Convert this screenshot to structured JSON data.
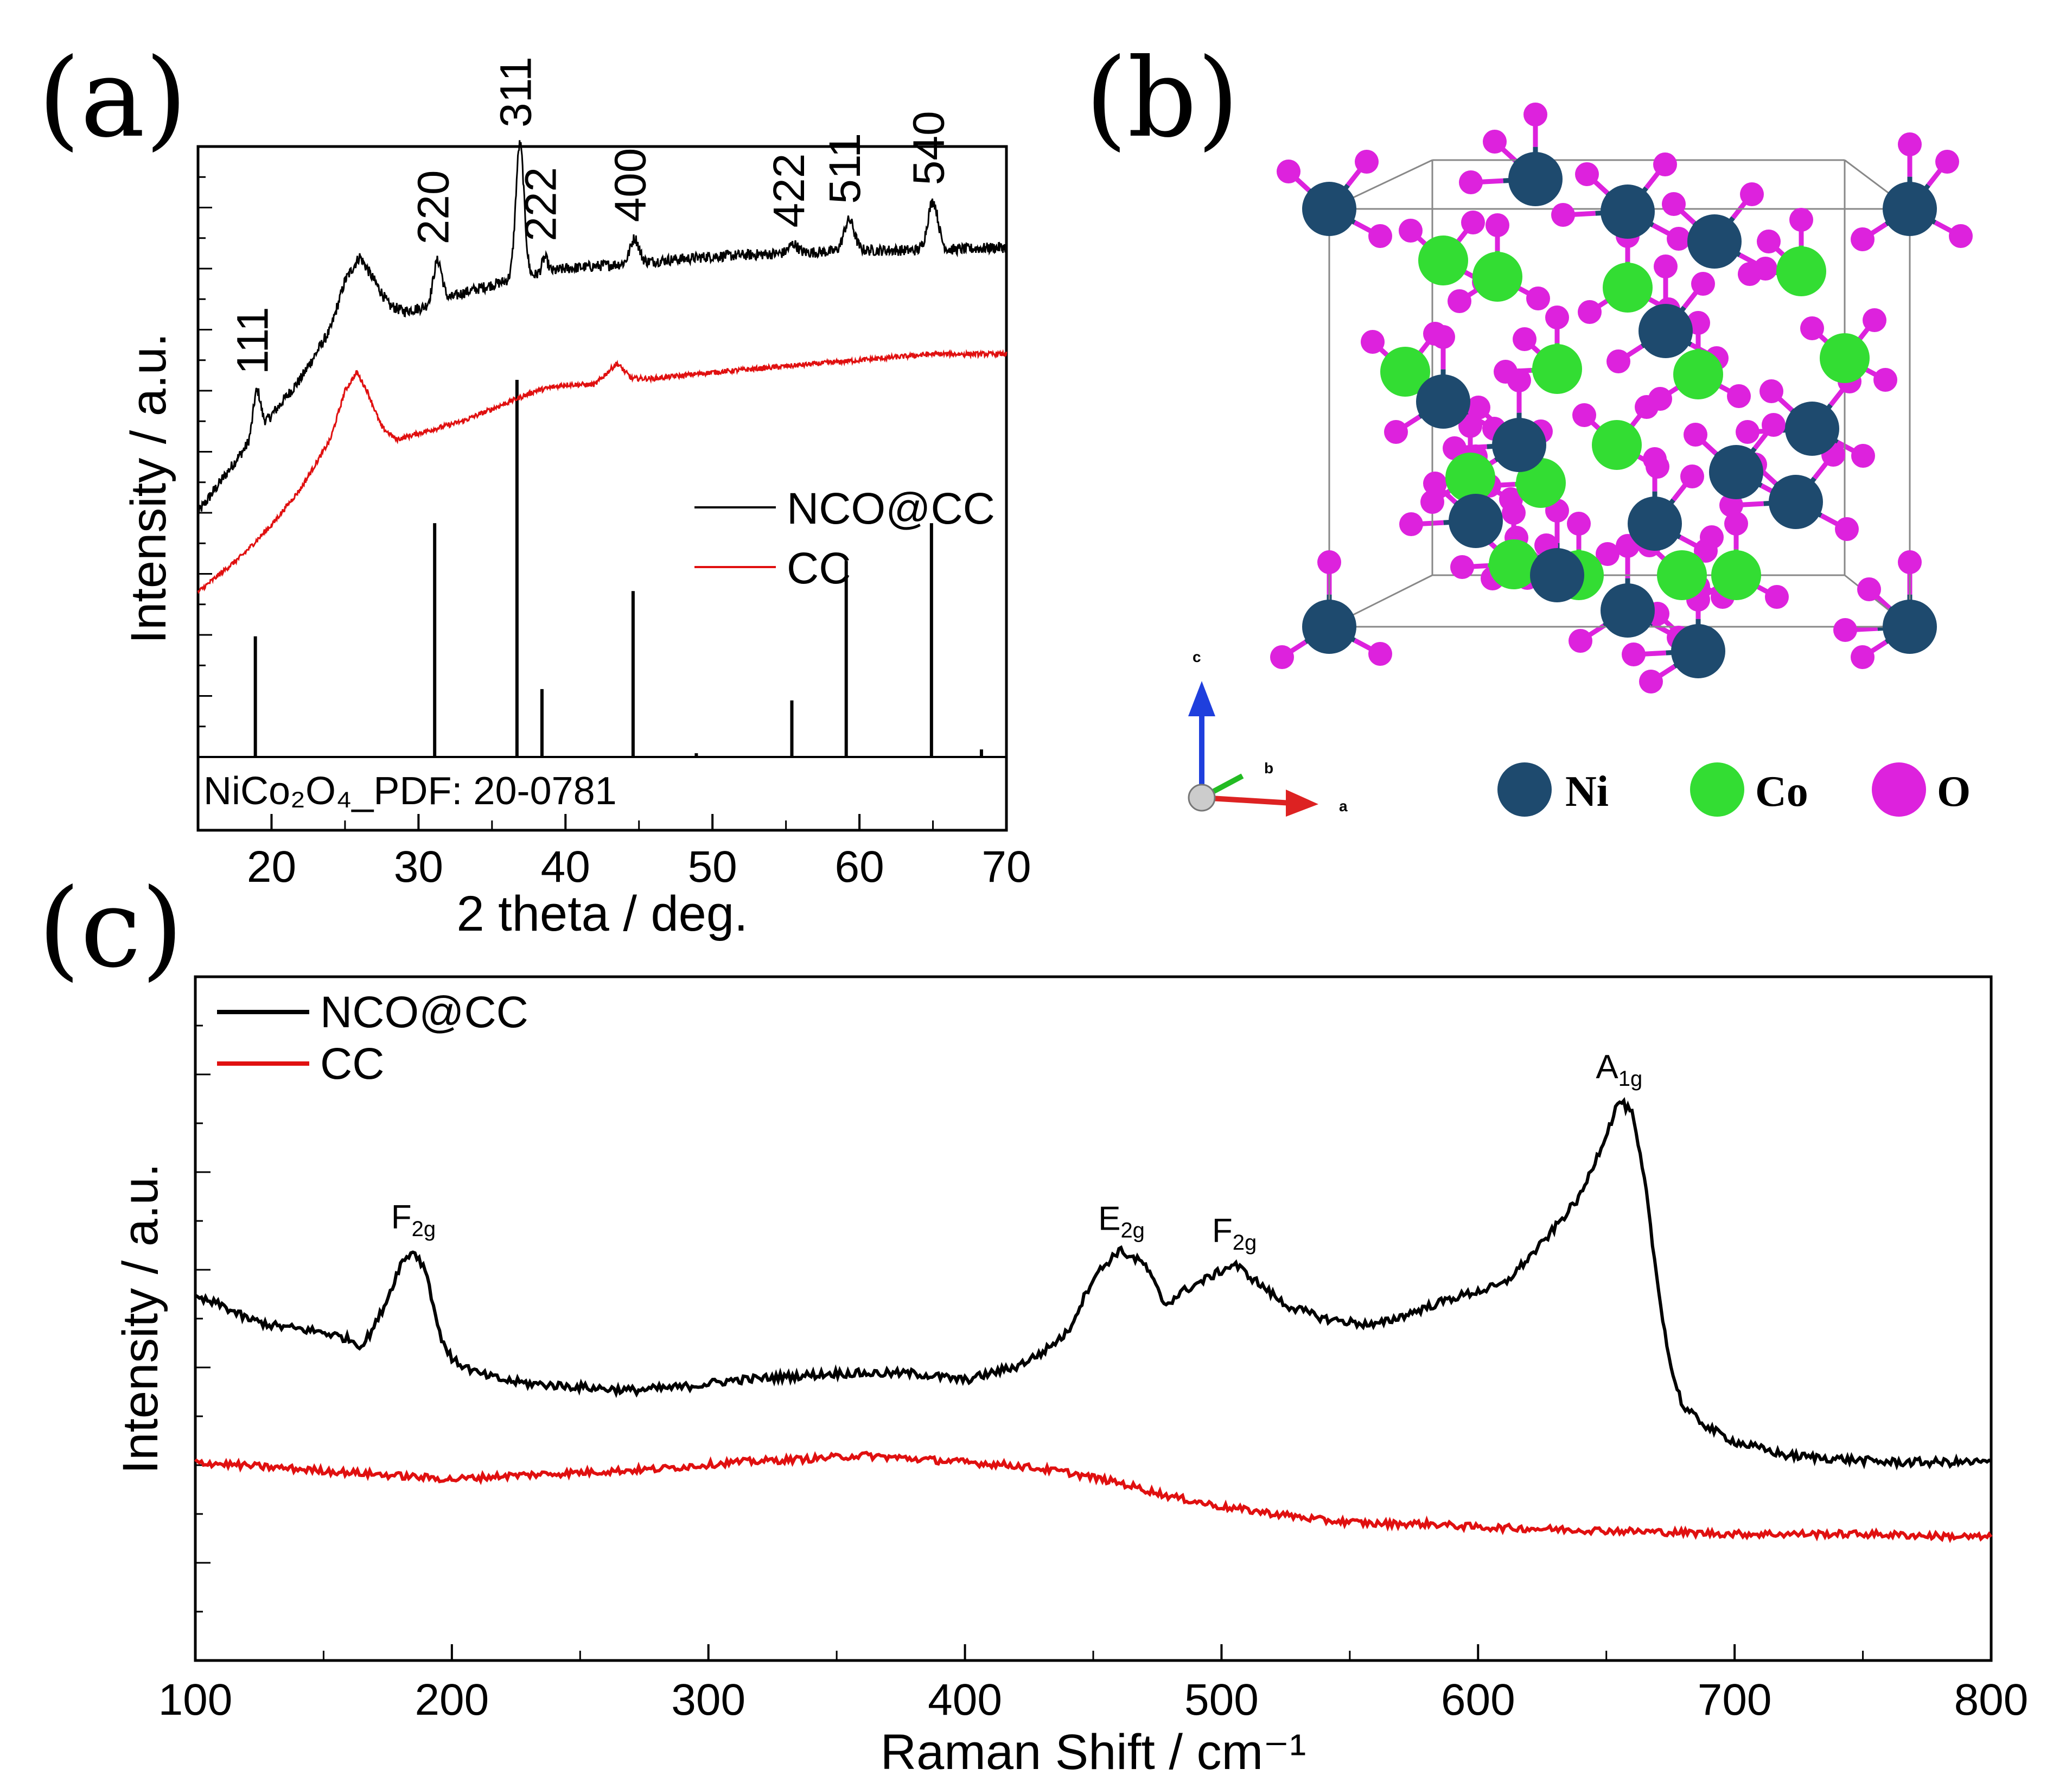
{
  "panels": {
    "a": "(a)",
    "b": "(b)",
    "c": "(c)"
  },
  "colors": {
    "nco": "#000000",
    "cc": "#e01010",
    "ni": "#1e4a6e",
    "co": "#33dd33",
    "o": "#dd22dd"
  },
  "chart_data": [
    {
      "id": "xrd",
      "type": "line",
      "title": "",
      "xlabel": "2 theta / deg.",
      "ylabel": "Intensity / a.u.",
      "xlim": [
        15,
        70
      ],
      "x_ticks": [
        20,
        30,
        40,
        50,
        60,
        70
      ],
      "legend": {
        "position": "right-middle",
        "entries": [
          "NCO@CC",
          "CC"
        ]
      },
      "series": [
        {
          "name": "NCO@CC",
          "color": "#000000",
          "baseline": [
            [
              15,
              0.4
            ],
            [
              18,
              0.5
            ],
            [
              20,
              0.56
            ],
            [
              22,
              0.62
            ],
            [
              24,
              0.7
            ],
            [
              25,
              0.78
            ],
            [
              26,
              0.82
            ],
            [
              27,
              0.78
            ],
            [
              28,
              0.74
            ],
            [
              29,
              0.73
            ],
            [
              31,
              0.74
            ],
            [
              33,
              0.76
            ],
            [
              36,
              0.78
            ],
            [
              38,
              0.79
            ],
            [
              40,
              0.8
            ],
            [
              45,
              0.81
            ],
            [
              50,
              0.82
            ],
            [
              55,
              0.825
            ],
            [
              60,
              0.83
            ],
            [
              65,
              0.83
            ],
            [
              70,
              0.835
            ]
          ],
          "peaks": [
            {
              "x": 19.0,
              "h": 0.07,
              "w": 0.25
            },
            {
              "x": 31.3,
              "h": 0.07,
              "w": 0.3
            },
            {
              "x": 36.9,
              "h": 0.22,
              "w": 0.28
            },
            {
              "x": 38.6,
              "h": 0.025,
              "w": 0.2
            },
            {
              "x": 44.7,
              "h": 0.04,
              "w": 0.3
            },
            {
              "x": 55.5,
              "h": 0.015,
              "w": 0.3
            },
            {
              "x": 59.3,
              "h": 0.05,
              "w": 0.35
            },
            {
              "x": 65.0,
              "h": 0.08,
              "w": 0.35
            }
          ]
        },
        {
          "name": "CC",
          "color": "#e01010",
          "baseline": [
            [
              15,
              0.27
            ],
            [
              18,
              0.33
            ],
            [
              20,
              0.38
            ],
            [
              22,
              0.44
            ],
            [
              24,
              0.52
            ],
            [
              25,
              0.6
            ],
            [
              25.8,
              0.63
            ],
            [
              26.5,
              0.6
            ],
            [
              27.5,
              0.54
            ],
            [
              28.5,
              0.52
            ],
            [
              30,
              0.53
            ],
            [
              33,
              0.55
            ],
            [
              36,
              0.58
            ],
            [
              38,
              0.6
            ],
            [
              40,
              0.61
            ],
            [
              42,
              0.61
            ],
            [
              43.5,
              0.645
            ],
            [
              44.5,
              0.62
            ],
            [
              46,
              0.62
            ],
            [
              50,
              0.63
            ],
            [
              55,
              0.64
            ],
            [
              60,
              0.65
            ],
            [
              65,
              0.66
            ],
            [
              70,
              0.66
            ]
          ],
          "peaks": []
        }
      ],
      "peak_labels": [
        {
          "x": 19.0,
          "label": "111"
        },
        {
          "x": 31.3,
          "label": "220"
        },
        {
          "x": 36.9,
          "label": "311"
        },
        {
          "x": 38.6,
          "label": "222"
        },
        {
          "x": 44.7,
          "label": "400"
        },
        {
          "x": 55.5,
          "label": "422"
        },
        {
          "x": 59.3,
          "label": "511"
        },
        {
          "x": 65.0,
          "label": "540"
        }
      ],
      "reference": {
        "label": "NiCo₂O₄_PDF: 20-0781",
        "lines": [
          [
            18.9,
            0.32
          ],
          [
            31.1,
            0.62
          ],
          [
            36.7,
            1.0
          ],
          [
            38.4,
            0.18
          ],
          [
            44.6,
            0.44
          ],
          [
            48.9,
            0.01
          ],
          [
            55.4,
            0.15
          ],
          [
            59.1,
            0.52
          ],
          [
            64.9,
            0.62
          ],
          [
            68.3,
            0.02
          ]
        ]
      }
    },
    {
      "id": "raman",
      "type": "line",
      "title": "",
      "xlabel": "Raman Shift / cm⁻¹",
      "ylabel": "Intensity / a.u.",
      "xlim": [
        100,
        800
      ],
      "x_ticks": [
        100,
        200,
        300,
        400,
        500,
        600,
        700,
        800
      ],
      "legend": {
        "position": "top-left",
        "entries": [
          "NCO@CC",
          "CC"
        ]
      },
      "series": [
        {
          "name": "NCO@CC",
          "color": "#000000",
          "points": [
            [
              100,
              0.53
            ],
            [
              110,
              0.52
            ],
            [
              120,
              0.5
            ],
            [
              130,
              0.49
            ],
            [
              140,
              0.485
            ],
            [
              150,
              0.48
            ],
            [
              160,
              0.47
            ],
            [
              165,
              0.46
            ],
            [
              170,
              0.49
            ],
            [
              175,
              0.53
            ],
            [
              180,
              0.58
            ],
            [
              185,
              0.6
            ],
            [
              190,
              0.57
            ],
            [
              195,
              0.48
            ],
            [
              200,
              0.44
            ],
            [
              210,
              0.42
            ],
            [
              220,
              0.41
            ],
            [
              230,
              0.405
            ],
            [
              250,
              0.4
            ],
            [
              270,
              0.395
            ],
            [
              290,
              0.4
            ],
            [
              310,
              0.41
            ],
            [
              330,
              0.415
            ],
            [
              350,
              0.42
            ],
            [
              380,
              0.42
            ],
            [
              400,
              0.41
            ],
            [
              410,
              0.42
            ],
            [
              420,
              0.43
            ],
            [
              430,
              0.45
            ],
            [
              440,
              0.48
            ],
            [
              450,
              0.56
            ],
            [
              460,
              0.6
            ],
            [
              470,
              0.58
            ],
            [
              478,
              0.52
            ],
            [
              485,
              0.54
            ],
            [
              495,
              0.56
            ],
            [
              505,
              0.58
            ],
            [
              515,
              0.55
            ],
            [
              525,
              0.52
            ],
            [
              540,
              0.5
            ],
            [
              560,
              0.49
            ],
            [
              575,
              0.51
            ],
            [
              590,
              0.53
            ],
            [
              600,
              0.54
            ],
            [
              610,
              0.55
            ],
            [
              625,
              0.61
            ],
            [
              640,
              0.68
            ],
            [
              650,
              0.77
            ],
            [
              655,
              0.82
            ],
            [
              660,
              0.8
            ],
            [
              665,
              0.7
            ],
            [
              670,
              0.55
            ],
            [
              675,
              0.43
            ],
            [
              680,
              0.37
            ],
            [
              690,
              0.34
            ],
            [
              700,
              0.32
            ],
            [
              720,
              0.3
            ],
            [
              740,
              0.295
            ],
            [
              760,
              0.29
            ],
            [
              780,
              0.29
            ],
            [
              800,
              0.29
            ]
          ]
        },
        {
          "name": "CC",
          "color": "#e01010",
          "points": [
            [
              100,
              0.29
            ],
            [
              120,
              0.285
            ],
            [
              140,
              0.28
            ],
            [
              160,
              0.275
            ],
            [
              180,
              0.27
            ],
            [
              200,
              0.265
            ],
            [
              220,
              0.27
            ],
            [
              250,
              0.275
            ],
            [
              280,
              0.28
            ],
            [
              310,
              0.29
            ],
            [
              340,
              0.295
            ],
            [
              360,
              0.3
            ],
            [
              380,
              0.295
            ],
            [
              400,
              0.29
            ],
            [
              420,
              0.285
            ],
            [
              440,
              0.275
            ],
            [
              460,
              0.26
            ],
            [
              480,
              0.24
            ],
            [
              500,
              0.225
            ],
            [
              520,
              0.215
            ],
            [
              540,
              0.205
            ],
            [
              560,
              0.2
            ],
            [
              580,
              0.2
            ],
            [
              600,
              0.195
            ],
            [
              650,
              0.19
            ],
            [
              700,
              0.185
            ],
            [
              750,
              0.185
            ],
            [
              800,
              0.18
            ]
          ]
        }
      ],
      "peak_labels": [
        {
          "x": 185,
          "base": "F",
          "sub": "2g"
        },
        {
          "x": 461,
          "base": "E",
          "sub": "2g"
        },
        {
          "x": 505,
          "base": "F",
          "sub": "2g"
        },
        {
          "x": 655,
          "base": "A",
          "sub": "1g"
        }
      ]
    }
  ],
  "structure": {
    "axes": {
      "c": "c",
      "b": "b",
      "a": "a"
    },
    "legend": [
      {
        "element": "Ni",
        "color": "#1e4a6e"
      },
      {
        "element": "Co",
        "color": "#33dd33"
      },
      {
        "element": "O",
        "color": "#dd22dd"
      }
    ]
  }
}
